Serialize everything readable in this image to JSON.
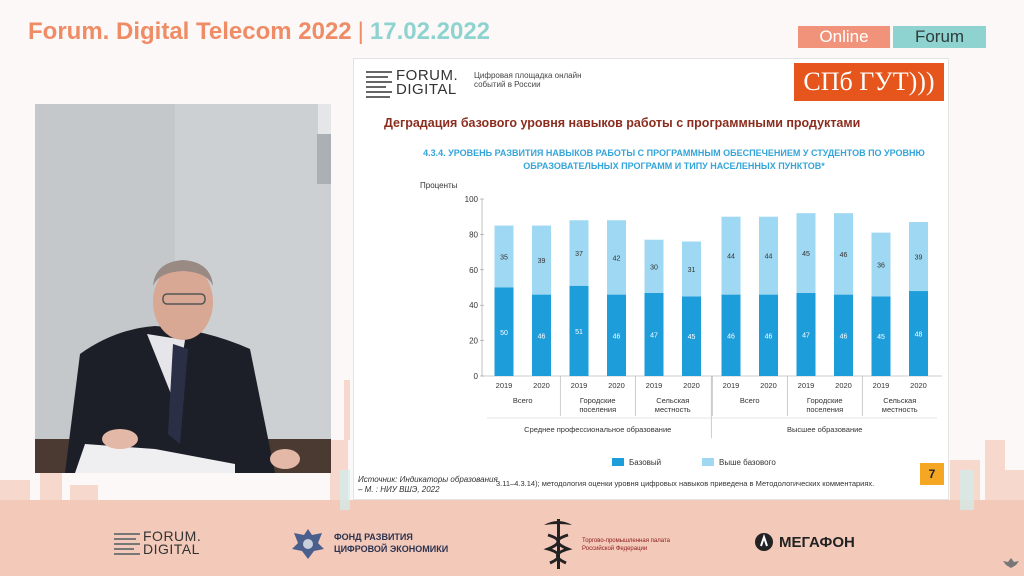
{
  "header": {
    "title": "Forum. Digital Telecom 2022",
    "separator": "|",
    "date": "17.02.2022",
    "online_label": "Online",
    "forum_label": "Forum"
  },
  "slide": {
    "logo_text_line1": "FORUM.",
    "logo_text_line2": "DIGITAL",
    "logo_subtitle": "Цифровая площадка онлайн событий в России",
    "university_logo": "СПб ГУТ)))",
    "title": "Деградация базового уровня навыков работы с программными продуктами",
    "chart_title": "4.3.4. УРОВЕНЬ РАЗВИТИЯ НАВЫКОВ РАБОТЫ С ПРОГРАММНЫМ ОБЕСПЕЧЕНИЕМ У СТУДЕНТОВ ПО УРОВНЮ ОБРАЗОВАТЕЛЬНЫХ ПРОГРАММ И ТИПУ НАСЕЛЕННЫХ ПУНКТОВ*",
    "source": "Источник: Индикаторы образования – М. : НИУ ВШЭ, 2022",
    "source_note": "3.11–4.3.14); методология оценки уровня цифровых навыков приведена в Методологических комментариях.",
    "page_number": "7"
  },
  "chart_data": {
    "type": "bar",
    "stacked": true,
    "ylabel": "Проценты",
    "ylim": [
      0,
      100
    ],
    "yticks": [
      "0",
      "20",
      "40",
      "60",
      "80",
      "100"
    ],
    "categories": [
      "2019",
      "2020",
      "2019",
      "2020",
      "2019",
      "2020",
      "2019",
      "2020",
      "2019",
      "2020",
      "2019",
      "2020"
    ],
    "groups": [
      "Всего",
      "Городские поселения",
      "Сельская местность",
      "Всего",
      "Городские поселения",
      "Сельская местность"
    ],
    "supergroups": [
      "Среднее профессиональное образование",
      "Высшее образование"
    ],
    "series": [
      {
        "name": "Базовый",
        "color": "#1e9ddb",
        "values": [
          50,
          46,
          51,
          46,
          47,
          45,
          46,
          46,
          47,
          46,
          45,
          48
        ]
      },
      {
        "name": "Выше базового",
        "color": "#9fd8f2",
        "values": [
          35,
          39,
          37,
          42,
          30,
          31,
          44,
          44,
          45,
          46,
          36,
          39
        ]
      }
    ],
    "legend_position": "bottom"
  },
  "footer": {
    "forum_digital_line1": "FORUM.",
    "forum_digital_line2": "DIGITAL",
    "fund_line1": "ФОНД РАЗВИТИЯ",
    "fund_line2": "ЦИФРОВОЙ ЭКОНОМИКИ",
    "chamber_line1": "Торгово-промышленная палата",
    "chamber_line2": "Российской Федерации",
    "megafon": "МЕГАФОН"
  }
}
